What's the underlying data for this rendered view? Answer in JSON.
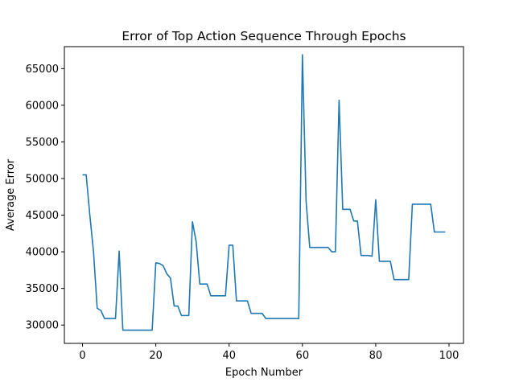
{
  "chart_data": {
    "type": "line",
    "title": "Error of Top Action Sequence Through Epochs",
    "xlabel": "Epoch Number",
    "ylabel": "Average Error",
    "xlim": [
      -4.95,
      103.95
    ],
    "ylim": [
      27500,
      68000
    ],
    "grid": false,
    "xticks": [
      0,
      20,
      40,
      60,
      80,
      100
    ],
    "yticks": [
      30000,
      35000,
      40000,
      45000,
      50000,
      55000,
      60000,
      65000
    ],
    "series": [
      {
        "color": "#1f77b4",
        "x": [
          0,
          1,
          2,
          3,
          4,
          5,
          6,
          7,
          8,
          9,
          10,
          11,
          12,
          13,
          14,
          15,
          16,
          17,
          18,
          19,
          20,
          21,
          22,
          23,
          24,
          25,
          26,
          27,
          28,
          29,
          30,
          31,
          32,
          33,
          34,
          35,
          36,
          37,
          38,
          39,
          40,
          41,
          42,
          43,
          44,
          45,
          46,
          47,
          48,
          49,
          50,
          51,
          52,
          53,
          54,
          55,
          56,
          57,
          58,
          59,
          60,
          61,
          62,
          63,
          64,
          65,
          66,
          67,
          68,
          69,
          70,
          71,
          72,
          73,
          74,
          75,
          76,
          77,
          78,
          79,
          80,
          81,
          82,
          83,
          84,
          85,
          86,
          87,
          88,
          89,
          90,
          91,
          92,
          93,
          94,
          95,
          96,
          97,
          98,
          99
        ],
        "y": [
          50500,
          50500,
          45000,
          40000,
          32300,
          32000,
          30900,
          30900,
          30900,
          30900,
          40100,
          29300,
          29300,
          29300,
          29300,
          29300,
          29300,
          29300,
          29300,
          29300,
          38500,
          38400,
          38100,
          37000,
          36400,
          32600,
          32600,
          31300,
          31300,
          31300,
          44100,
          41400,
          35600,
          35600,
          35600,
          34000,
          34000,
          34000,
          34000,
          34000,
          40900,
          40900,
          33300,
          33300,
          33300,
          33300,
          31600,
          31600,
          31600,
          31600,
          30900,
          30900,
          30900,
          30900,
          30900,
          30900,
          30900,
          30900,
          30900,
          30900,
          66900,
          46900,
          40600,
          40600,
          40600,
          40600,
          40600,
          40600,
          40000,
          40000,
          60700,
          45800,
          45800,
          45800,
          44200,
          44200,
          39500,
          39500,
          39500,
          39400,
          47100,
          38700,
          38700,
          38700,
          38700,
          36200,
          36200,
          36200,
          36200,
          36200,
          46500,
          46500,
          46500,
          46500,
          46500,
          46500,
          42700,
          42700,
          42700,
          42700
        ]
      }
    ]
  }
}
